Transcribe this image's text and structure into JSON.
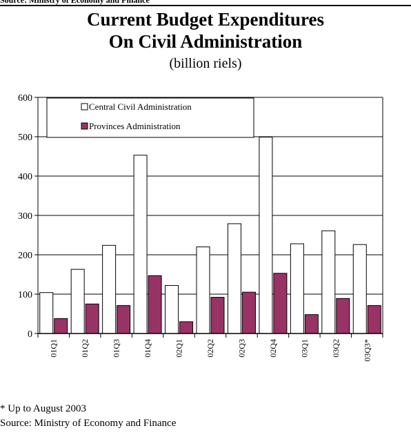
{
  "header": {
    "top_caption": "Source: Ministry of Economy and Finance",
    "title_line_1": "Current Budget Expenditures",
    "title_line_2": "On Civil Administration",
    "subtitle": "(billion riels)"
  },
  "chart_data": {
    "type": "bar",
    "categories": [
      "01Q1",
      "01Q2",
      "01Q3",
      "01Q4",
      "02Q1",
      "02Q2",
      "02Q3",
      "02Q4",
      "03Q1",
      "03Q2",
      "03Q3*"
    ],
    "series": [
      {
        "name": "Central Civil Administration",
        "values": [
          104,
          163,
          224,
          453,
          122,
          220,
          279,
          499,
          228,
          261,
          226
        ]
      },
      {
        "name": "Provinces Administration",
        "values": [
          38,
          75,
          71,
          147,
          30,
          92,
          105,
          153,
          48,
          89,
          71
        ]
      }
    ],
    "ylim": [
      0,
      600
    ],
    "yticks": [
      0,
      100,
      200,
      300,
      400,
      500,
      600
    ],
    "grid": true,
    "legend_position": "top-left",
    "colors": {
      "central": "#ffffff",
      "provinces": "#993366",
      "outline": "#000000"
    }
  },
  "footer": {
    "footnote": "* Up to August 2003",
    "source": "Source: Ministry of Economy and Finance"
  }
}
